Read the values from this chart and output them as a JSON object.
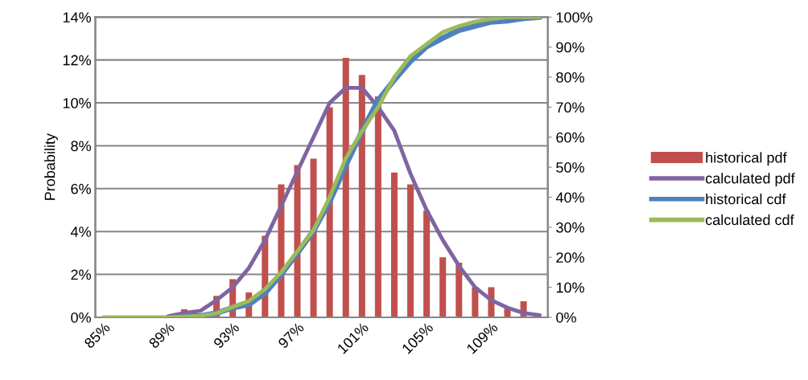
{
  "chart_data": {
    "type": "bar",
    "ylabel": "Probability",
    "categories": [
      "85%",
      null,
      null,
      null,
      "89%",
      null,
      null,
      null,
      "93%",
      null,
      null,
      null,
      "97%",
      null,
      null,
      null,
      "101%",
      null,
      null,
      null,
      "105%",
      null,
      null,
      null,
      "109%",
      null,
      null,
      null
    ],
    "series": [
      {
        "name": "historical pdf",
        "color": "#c0504d",
        "values": [
          0,
          0,
          0,
          0,
          0,
          0.37,
          0,
          1.0,
          1.78,
          1.16,
          3.8,
          6.2,
          7.1,
          7.4,
          9.8,
          12.1,
          11.3,
          10.3,
          6.75,
          6.2,
          4.97,
          2.8,
          2.55,
          1.4,
          1.4,
          0.4,
          0.75,
          0
        ]
      },
      {
        "name": "calculated pdf",
        "type": "line",
        "color": "#8064a2",
        "values": [
          null,
          null,
          null,
          null,
          0.05,
          0.2,
          0.3,
          0.8,
          1.4,
          2.3,
          3.6,
          5.2,
          6.8,
          8.4,
          10.0,
          10.7,
          10.7,
          9.8,
          8.7,
          6.7,
          5.0,
          3.6,
          2.4,
          1.4,
          0.8,
          0.45,
          0.2,
          0.1
        ]
      },
      {
        "name": "historical cdf",
        "type": "line",
        "axis": "y2",
        "color": "#4f81bd",
        "values": [
          null,
          null,
          null,
          null,
          null,
          0.4,
          0.4,
          1.4,
          3.2,
          4.3,
          8.1,
          14.3,
          21.4,
          28.8,
          38.6,
          50.7,
          62.0,
          72.3,
          79.1,
          85.3,
          90.2,
          93.0,
          95.6,
          97.0,
          98.4,
          98.8,
          99.6,
          100
        ]
      },
      {
        "name": "calculated cdf",
        "type": "line",
        "axis": "y2",
        "color": "#9bbb59",
        "values": [
          0,
          0,
          0,
          0,
          0,
          0.2,
          0.5,
          1.3,
          3.5,
          5.4,
          9.4,
          15,
          22,
          29,
          40,
          53,
          62,
          70,
          80,
          87,
          91,
          95,
          97,
          98.5,
          99.4,
          100,
          100,
          100
        ]
      }
    ],
    "ylim": [
      0,
      14
    ],
    "yticks": [
      {
        "value": 0,
        "label": "0%"
      },
      {
        "value": 2,
        "label": "2%"
      },
      {
        "value": 4,
        "label": "4%"
      },
      {
        "value": 6,
        "label": "6%"
      },
      {
        "value": 8,
        "label": "8%"
      },
      {
        "value": 10,
        "label": "10%"
      },
      {
        "value": 12,
        "label": "12%"
      },
      {
        "value": 14,
        "label": "14%"
      }
    ],
    "y2lim": [
      0,
      100
    ],
    "y2ticks": [
      {
        "value": 0,
        "label": "0%"
      },
      {
        "value": 10,
        "label": "10%"
      },
      {
        "value": 20,
        "label": "20%"
      },
      {
        "value": 30,
        "label": "30%"
      },
      {
        "value": 40,
        "label": "40%"
      },
      {
        "value": 50,
        "label": "50%"
      },
      {
        "value": 60,
        "label": "60%"
      },
      {
        "value": 70,
        "label": "70%"
      },
      {
        "value": 80,
        "label": "80%"
      },
      {
        "value": 90,
        "label": "90%"
      },
      {
        "value": 100,
        "label": "100%"
      }
    ],
    "grid": "y",
    "legend": "right",
    "marker": "none",
    "line_style": "solid"
  }
}
